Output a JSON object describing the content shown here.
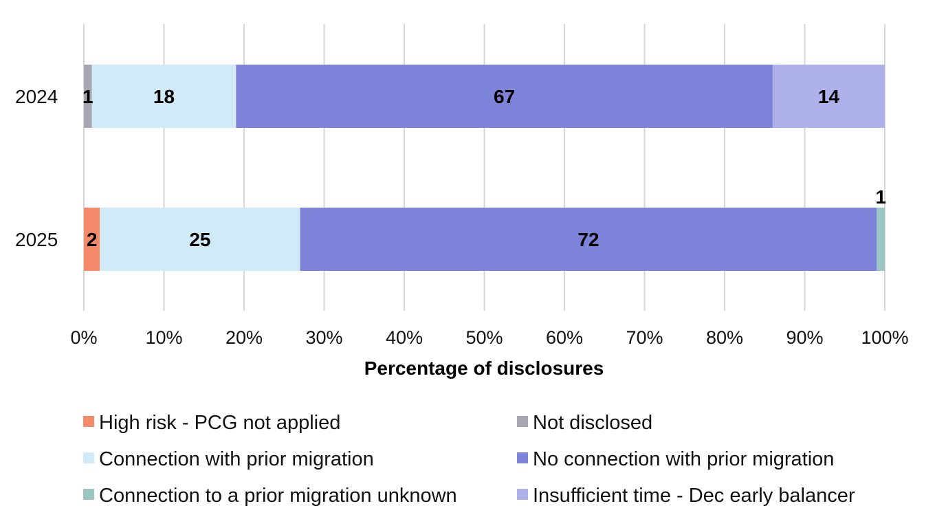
{
  "chart_data": {
    "type": "bar",
    "orientation": "horizontal",
    "stacked": "percent",
    "categories": [
      "2024",
      "2025"
    ],
    "xlabel": "Percentage of disclosures",
    "ylabel": "",
    "xlim": [
      0,
      100
    ],
    "x_ticks": [
      "0%",
      "10%",
      "20%",
      "30%",
      "40%",
      "50%",
      "60%",
      "70%",
      "80%",
      "90%",
      "100%"
    ],
    "grid": "vertical",
    "legend_position": "bottom",
    "series": [
      {
        "name": "High risk - PCG not applied",
        "color": "#f48a6a",
        "values": [
          0,
          2
        ],
        "labels": [
          "",
          "2"
        ]
      },
      {
        "name": "Not disclosed",
        "color": "#a8a6b0",
        "values": [
          1,
          0
        ],
        "labels": [
          "1",
          ""
        ]
      },
      {
        "name": "Connection with prior migration",
        "color": "#d0ebf7",
        "values": [
          18,
          25
        ],
        "labels": [
          "18",
          "25"
        ]
      },
      {
        "name": "No connection with prior migration",
        "color": "#7e83da",
        "values": [
          67,
          72
        ],
        "labels": [
          "67",
          "72"
        ]
      },
      {
        "name": "Connection to a prior migration unknown",
        "color": "#9bc6c4",
        "values": [
          0,
          1
        ],
        "labels": [
          "",
          "1"
        ]
      },
      {
        "name": "Insufficient time - Dec early balancer",
        "color": "#aeb1ea",
        "values": [
          14,
          0
        ],
        "labels": [
          "14",
          ""
        ]
      }
    ],
    "legend_order": [
      0,
      1,
      2,
      3,
      4,
      5
    ]
  }
}
